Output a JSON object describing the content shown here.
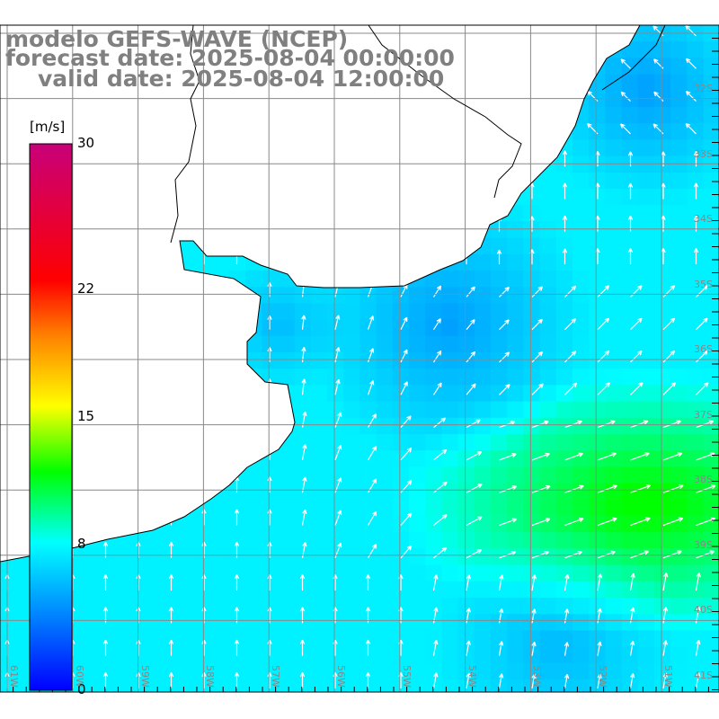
{
  "title": {
    "line1": "modelo GEFS-WAVE (NCEP)",
    "line2": "forecast date: 2025-08-04 00:00:00",
    "line3": "valid date: 2025-08-04 12:00:00"
  },
  "colorbar": {
    "unit": "[m/s]",
    "ticks": [
      {
        "label": "30",
        "value": 30
      },
      {
        "label": "22",
        "value": 22
      },
      {
        "label": "15",
        "value": 15
      },
      {
        "label": "8",
        "value": 8
      },
      {
        "label": "0",
        "value": 0
      }
    ],
    "min": 0,
    "max": 30,
    "colors": [
      "#0000ff",
      "#0090ff",
      "#00ffff",
      "#00ff00",
      "#ffff00",
      "#ff8000",
      "#ff0000",
      "#c8007a"
    ]
  },
  "axes": {
    "lat_labels": [
      "32S",
      "33S",
      "34S",
      "35S",
      "36S",
      "37S",
      "38S",
      "39S",
      "40S",
      "41S"
    ],
    "lon_labels": [
      "61W",
      "60W",
      "59W",
      "58W",
      "57W",
      "56W",
      "55W",
      "54W",
      "53W",
      "52W",
      "51W"
    ]
  }
}
